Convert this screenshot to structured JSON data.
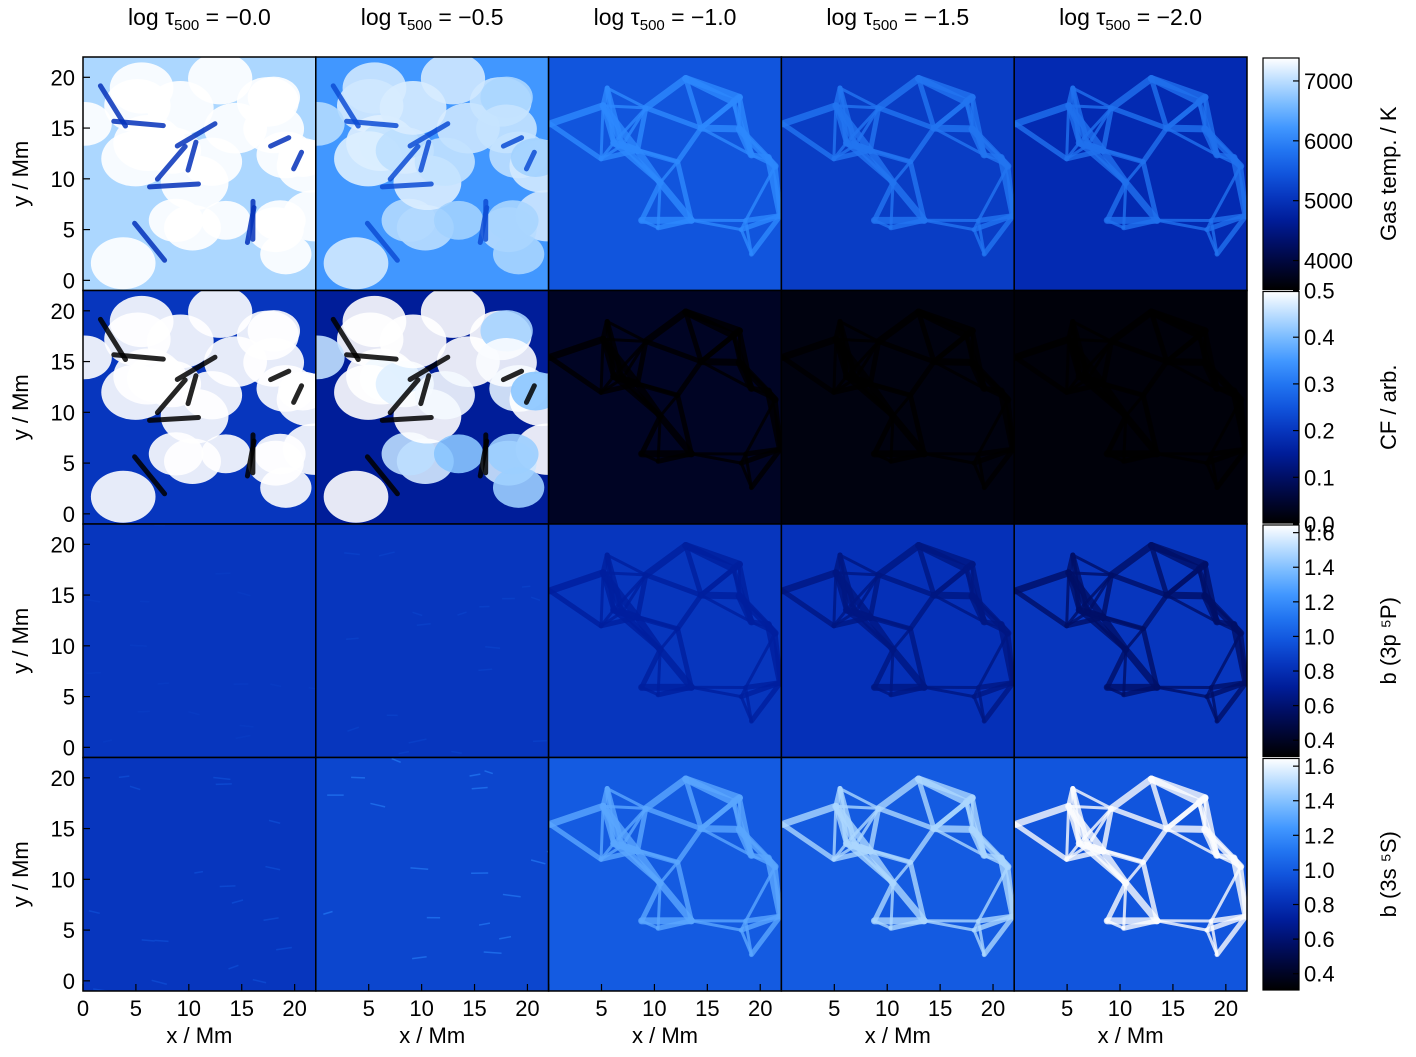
{
  "chart_data": {
    "type": "heatmap",
    "column_titles": [
      {
        "main": "log τ",
        "sub": "500",
        "value": " = −0.0"
      },
      {
        "main": "log τ",
        "sub": "500",
        "value": " = −0.5"
      },
      {
        "main": "log τ",
        "sub": "500",
        "value": " = −1.0"
      },
      {
        "main": "log τ",
        "sub": "500",
        "value": " = −1.5"
      },
      {
        "main": "log τ",
        "sub": "500",
        "value": " = −2.0"
      }
    ],
    "xlabel": "x / Mm",
    "ylabel": "y / Mm",
    "xlim": [
      0,
      22
    ],
    "ylim": [
      -1,
      22
    ],
    "x_ticks": [
      0,
      5,
      10,
      15,
      20
    ],
    "x_tick_labels_first": [
      "0",
      "5",
      "10",
      "15",
      "20"
    ],
    "x_tick_labels_other": [
      "0",
      "5",
      "10",
      "15",
      "20"
    ],
    "y_ticks": [
      0,
      5,
      10,
      15,
      20
    ],
    "y_tick_labels": [
      "0",
      "5",
      "10",
      "15",
      "20"
    ],
    "rows": [
      {
        "quantity": "Gas temp. / K",
        "colorbar_label": "Gas temp. / K",
        "colorbar_range": [
          3500,
          7400
        ],
        "colorbar_ticks": [
          4000,
          5000,
          6000,
          7000
        ],
        "colorbar_tick_labels": [
          "4000",
          "5000",
          "6000",
          "7000"
        ],
        "panel_levels": [
          0.88,
          0.7,
          0.5,
          0.42,
          0.36
        ],
        "panel_contrast": [
          0.55,
          0.25,
          0.18,
          0.2,
          0.25
        ],
        "panel_feature": [
          "granulation",
          "granulation",
          "network",
          "network",
          "network"
        ]
      },
      {
        "quantity": "CF / arb.",
        "colorbar_label": "CF / arb.",
        "colorbar_range": [
          0.0,
          0.5
        ],
        "colorbar_ticks": [
          0.0,
          0.1,
          0.2,
          0.3,
          0.4,
          0.5
        ],
        "colorbar_tick_labels": [
          "0.0",
          "0.1",
          "0.2",
          "0.3",
          "0.4",
          "0.5"
        ],
        "panel_levels": [
          0.4,
          0.3,
          0.07,
          0.03,
          0.02
        ],
        "panel_contrast": [
          1.0,
          0.8,
          0.1,
          0.04,
          0.03
        ],
        "panel_feature": [
          "granulation",
          "granulation",
          "network",
          "network",
          "network"
        ]
      },
      {
        "quantity": "b (3p ⁵P)",
        "colorbar_label": "b (3p ⁵P)",
        "colorbar_range": [
          0.3,
          1.65
        ],
        "colorbar_ticks": [
          0.4,
          0.6,
          0.8,
          1.0,
          1.2,
          1.4,
          1.6
        ],
        "colorbar_tick_labels": [
          "0.4",
          "0.6",
          "0.8",
          "1.0",
          "1.2",
          "1.4",
          "1.6"
        ],
        "panel_levels": [
          0.4,
          0.4,
          0.4,
          0.38,
          0.4
        ],
        "panel_contrast": [
          0.01,
          0.02,
          0.1,
          0.14,
          0.22
        ],
        "panel_feature": [
          "flat",
          "flat",
          "network",
          "network",
          "network"
        ]
      },
      {
        "quantity": "b (3s ⁵S)",
        "colorbar_label": "b (3s ⁵S)",
        "colorbar_range": [
          0.3,
          1.65
        ],
        "colorbar_ticks": [
          0.4,
          0.6,
          0.8,
          1.0,
          1.2,
          1.4,
          1.6
        ],
        "colorbar_tick_labels": [
          "0.4",
          "0.6",
          "0.8",
          "1.0",
          "1.2",
          "1.4",
          "1.6"
        ],
        "panel_levels": [
          0.4,
          0.45,
          0.52,
          0.52,
          0.5
        ],
        "panel_contrast": [
          0.04,
          0.08,
          0.25,
          0.4,
          0.55
        ],
        "panel_feature": [
          "flat",
          "flat",
          "network",
          "network",
          "network"
        ]
      }
    ],
    "colormap": {
      "name": "blue",
      "stops": [
        "#000000",
        "#000a55",
        "#0022aa",
        "#1155dd",
        "#2e8bff",
        "#8cc7ff",
        "#ffffff"
      ]
    }
  }
}
